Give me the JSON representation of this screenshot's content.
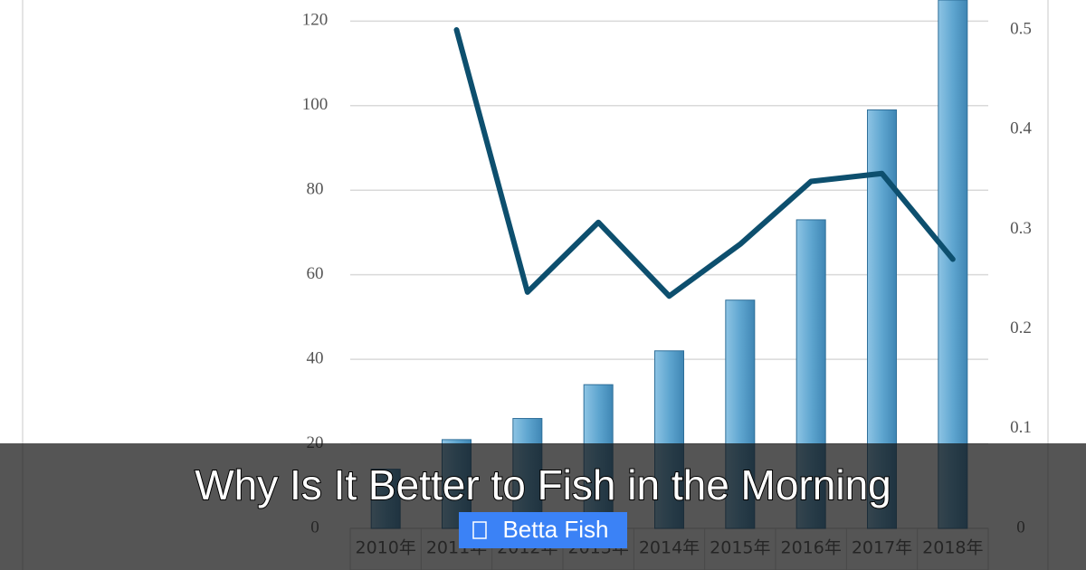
{
  "chart_data": {
    "type": "bar-line",
    "categories": [
      "2010年",
      "2011年",
      "2012年",
      "2013年",
      "2014年",
      "2015年",
      "2016年",
      "2017年",
      "2018年"
    ],
    "series": [
      {
        "type": "bar",
        "color": "#6aaed6",
        "values": [
          14,
          21,
          26,
          34,
          42,
          54,
          73,
          99,
          125
        ]
      },
      {
        "type": "line",
        "axis": "y2",
        "color": "#0d4f6e",
        "values": [
          null,
          0.5,
          0.237,
          0.307,
          0.233,
          0.285,
          0.348,
          0.356,
          0.27
        ]
      }
    ],
    "ylim": [
      0,
      125
    ],
    "yticks": [
      0,
      20,
      40,
      60,
      80,
      100,
      120
    ],
    "y2lim": [
      0,
      0.53
    ],
    "y2ticks": [
      0,
      0.1,
      0.2,
      0.3,
      0.4,
      0.5
    ],
    "grid": true
  },
  "header": {
    "title": "Why Is It Better to Fish in the Morning",
    "tag": "Betta Fish"
  }
}
